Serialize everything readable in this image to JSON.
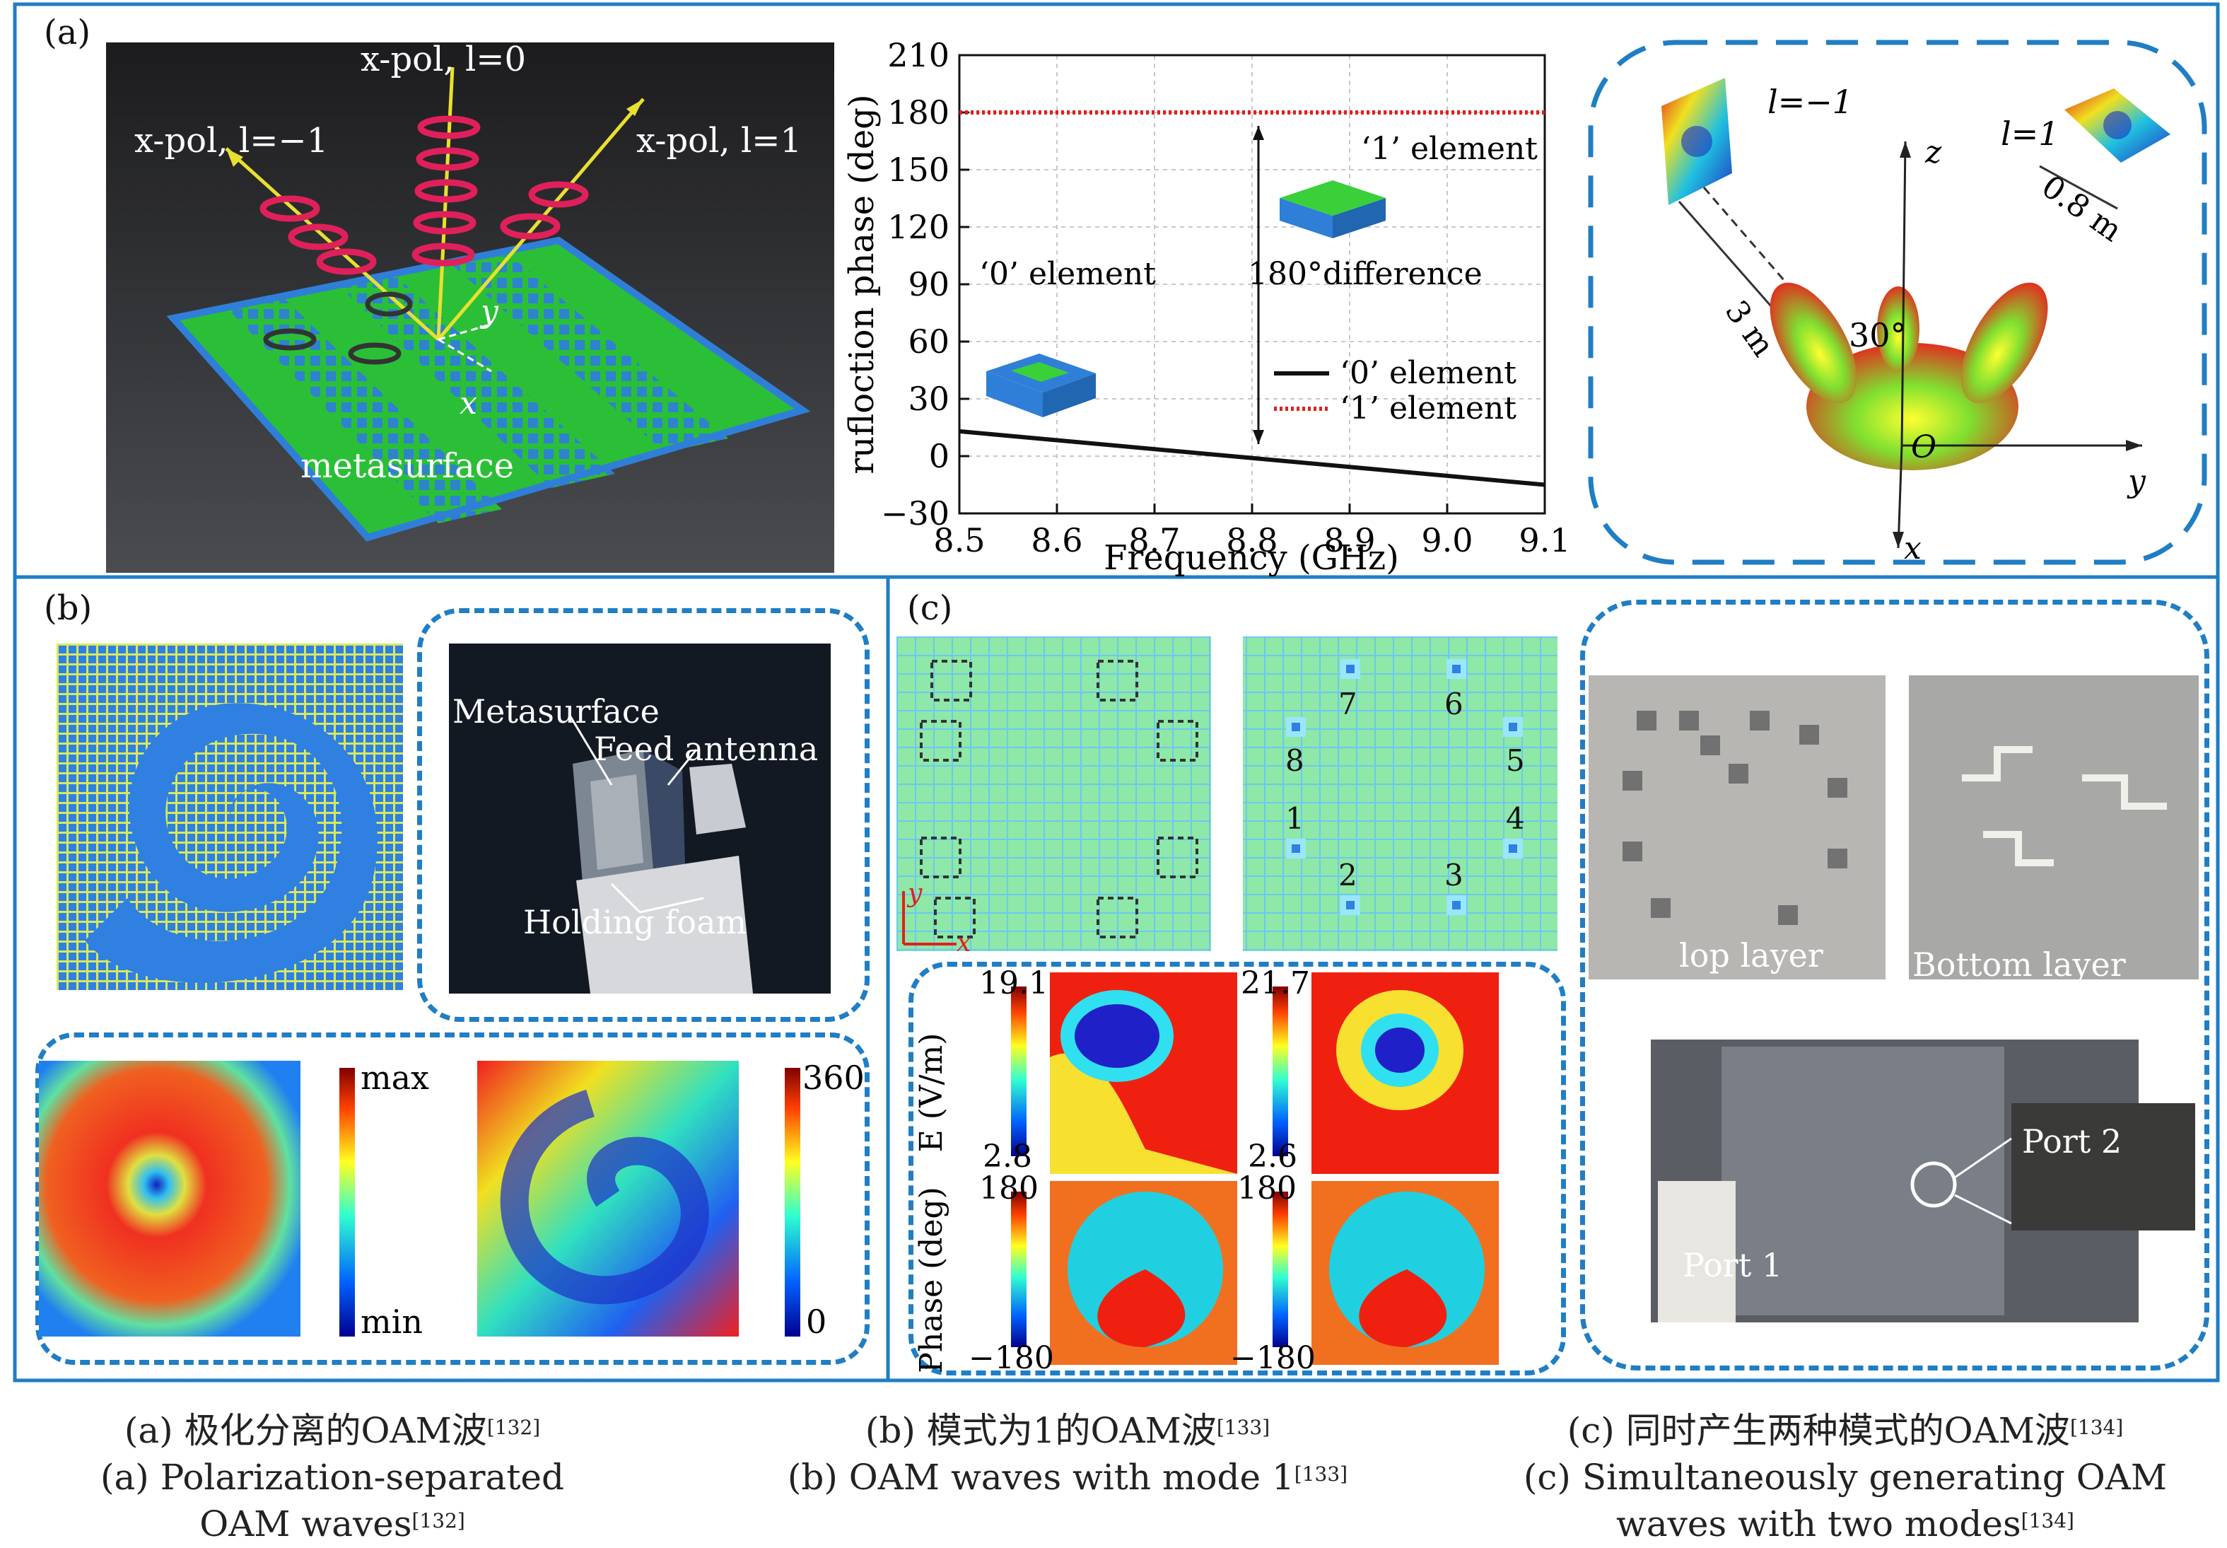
{
  "panels": {
    "a": {
      "label": "(a)",
      "scene": {
        "beam_left": "x-pol, l=−1",
        "beam_mid": "x-pol, l=0",
        "beam_right": "x-pol, l=1",
        "axis_y": "y",
        "axis_x": "x",
        "surface_label": "metasurface"
      },
      "far_field": {
        "mode_left": "l=−1",
        "mode_right": "l=1",
        "distance_far": "3 m",
        "distance_size": "0.8 m",
        "angle": "30°",
        "axis_z": "z",
        "axis_y": "y",
        "axis_x": "x",
        "origin": "O"
      }
    },
    "b": {
      "label": "(b)",
      "photo_labels": {
        "metasurface": "Metasurface",
        "feed": "Feed antenna",
        "foam": "Holding foam"
      },
      "amp_bar": {
        "max": "max",
        "min": "min"
      },
      "phase_bar": {
        "max": "360",
        "min": "0"
      }
    },
    "c": {
      "label": "(c)",
      "ports": [
        "7",
        "6",
        "8",
        "5",
        "1",
        "4",
        "2",
        "3"
      ],
      "axis_y": "y",
      "axis_x": "x",
      "field": {
        "ylabel_e": "E (V/m)",
        "ylabel_phase": "Phase (deg)",
        "e1_max": "19.1",
        "e1_min": "2.8",
        "e2_max": "21.7",
        "e2_min": "2.6",
        "p1_max": "180",
        "p1_min": "−180",
        "p2_max": "180",
        "p2_min": "−180"
      },
      "photo_top": "lop layer",
      "photo_bottom": "Bottom layer",
      "port1": "Port 1",
      "port2": "Port 2"
    }
  },
  "chart_data": {
    "type": "line",
    "title": "",
    "xlabel": "Frequency (GHz)",
    "ylabel": "rufloction phase (deg)",
    "xlim": [
      8.5,
      9.1
    ],
    "ylim": [
      -30,
      210
    ],
    "xticks": [
      "8.5",
      "8.6",
      "8.7",
      "8.8",
      "8.9",
      "9.0",
      "9.1"
    ],
    "yticks": [
      "210",
      "180",
      "150",
      "120",
      "90",
      "60",
      "30",
      "0",
      "−30"
    ],
    "grid": true,
    "legend_position": "bottom-right",
    "series": [
      {
        "name": "‘0’ element",
        "color": "#111111",
        "x": [
          8.5,
          9.1
        ],
        "y": [
          13,
          -15
        ]
      },
      {
        "name": "‘1’ element",
        "color": "#e02020",
        "x": [
          8.5,
          9.1
        ],
        "y": [
          180,
          180
        ]
      }
    ],
    "annotations": [
      "‘1’ element",
      "‘0’ element",
      "180°difference"
    ]
  },
  "captions": [
    {
      "cn": "(a) 极化分离的OAM波",
      "cn_ref": "[132]",
      "en1": "(a) Polarization-separated",
      "en2": "OAM waves",
      "en_ref": "[132]"
    },
    {
      "cn": "(b) 模式为1的OAM波",
      "cn_ref": "[133]",
      "en1": "(b) OAM waves with mode 1",
      "en1_ref": "[133]"
    },
    {
      "cn": "(c) 同时产生两种模式的OAM波",
      "cn_ref": "[134]",
      "en1": "(c) Simultaneously generating OAM",
      "en2": "waves with two modes",
      "en_ref": "[134]"
    }
  ],
  "colors": {
    "frame": "#1f7ec4",
    "dashed": "#1f7ec4",
    "meta_green": "#2ec42e",
    "meta_blue": "#2f7fd8"
  }
}
